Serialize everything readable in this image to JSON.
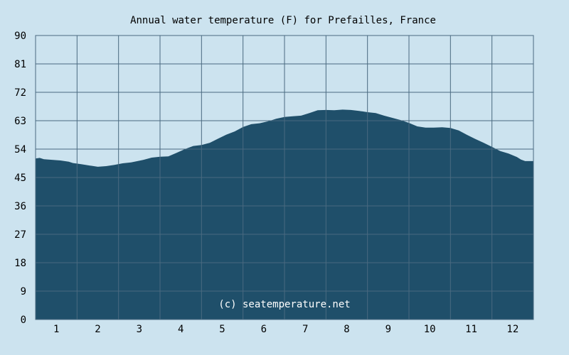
{
  "chart_data": {
    "type": "area",
    "title": "Annual water temperature (F) for Prefailles, France",
    "watermark": "(c) seatemperature.net",
    "xlabel": "",
    "ylabel": "",
    "categories": [
      "1",
      "2",
      "3",
      "4",
      "5",
      "6",
      "7",
      "8",
      "9",
      "10",
      "11",
      "12"
    ],
    "yticks": [
      "0",
      "9",
      "18",
      "27",
      "36",
      "45",
      "54",
      "63",
      "72",
      "81",
      "90"
    ],
    "ylim": [
      0,
      90
    ],
    "xlim": [
      0.5,
      12.5
    ],
    "grid": true,
    "colors": {
      "background": "#cce3ef",
      "area_fill": "#1f4f6a",
      "grid_line": "#4a6a80",
      "frame": "#4a6a80",
      "text": "#000000",
      "watermark": "#ffffff"
    },
    "series": [
      {
        "points": [
          [
            0.5,
            51.0
          ],
          [
            0.6,
            51.2
          ],
          [
            0.7,
            50.8
          ],
          [
            0.9,
            50.6
          ],
          [
            1.1,
            50.4
          ],
          [
            1.3,
            50.0
          ],
          [
            1.4,
            49.6
          ],
          [
            1.6,
            49.2
          ],
          [
            1.8,
            48.8
          ],
          [
            2.0,
            48.4
          ],
          [
            2.2,
            48.6
          ],
          [
            2.4,
            49.0
          ],
          [
            2.6,
            49.5
          ],
          [
            2.8,
            49.8
          ],
          [
            3.0,
            50.3
          ],
          [
            3.1,
            50.6
          ],
          [
            3.3,
            51.3
          ],
          [
            3.5,
            51.6
          ],
          [
            3.7,
            51.7
          ],
          [
            3.9,
            52.8
          ],
          [
            4.1,
            54.0
          ],
          [
            4.3,
            55.0
          ],
          [
            4.5,
            55.3
          ],
          [
            4.7,
            56.0
          ],
          [
            4.9,
            57.3
          ],
          [
            5.1,
            58.6
          ],
          [
            5.3,
            59.6
          ],
          [
            5.5,
            61.0
          ],
          [
            5.7,
            61.9
          ],
          [
            5.9,
            62.2
          ],
          [
            6.1,
            62.8
          ],
          [
            6.3,
            63.6
          ],
          [
            6.5,
            64.2
          ],
          [
            6.7,
            64.4
          ],
          [
            6.9,
            64.6
          ],
          [
            7.1,
            65.4
          ],
          [
            7.3,
            66.3
          ],
          [
            7.5,
            66.4
          ],
          [
            7.7,
            66.3
          ],
          [
            7.9,
            66.5
          ],
          [
            8.1,
            66.4
          ],
          [
            8.3,
            66.1
          ],
          [
            8.5,
            65.7
          ],
          [
            8.7,
            65.4
          ],
          [
            8.9,
            64.6
          ],
          [
            9.1,
            63.9
          ],
          [
            9.3,
            63.2
          ],
          [
            9.5,
            62.3
          ],
          [
            9.7,
            61.2
          ],
          [
            9.9,
            60.8
          ],
          [
            10.1,
            60.8
          ],
          [
            10.3,
            60.9
          ],
          [
            10.5,
            60.7
          ],
          [
            10.7,
            59.9
          ],
          [
            10.9,
            58.5
          ],
          [
            11.1,
            57.2
          ],
          [
            11.3,
            56.0
          ],
          [
            11.5,
            54.7
          ],
          [
            11.7,
            53.4
          ],
          [
            11.9,
            52.6
          ],
          [
            12.1,
            51.5
          ],
          [
            12.2,
            50.7
          ],
          [
            12.3,
            50.2
          ],
          [
            12.5,
            50.2
          ]
        ]
      }
    ]
  }
}
